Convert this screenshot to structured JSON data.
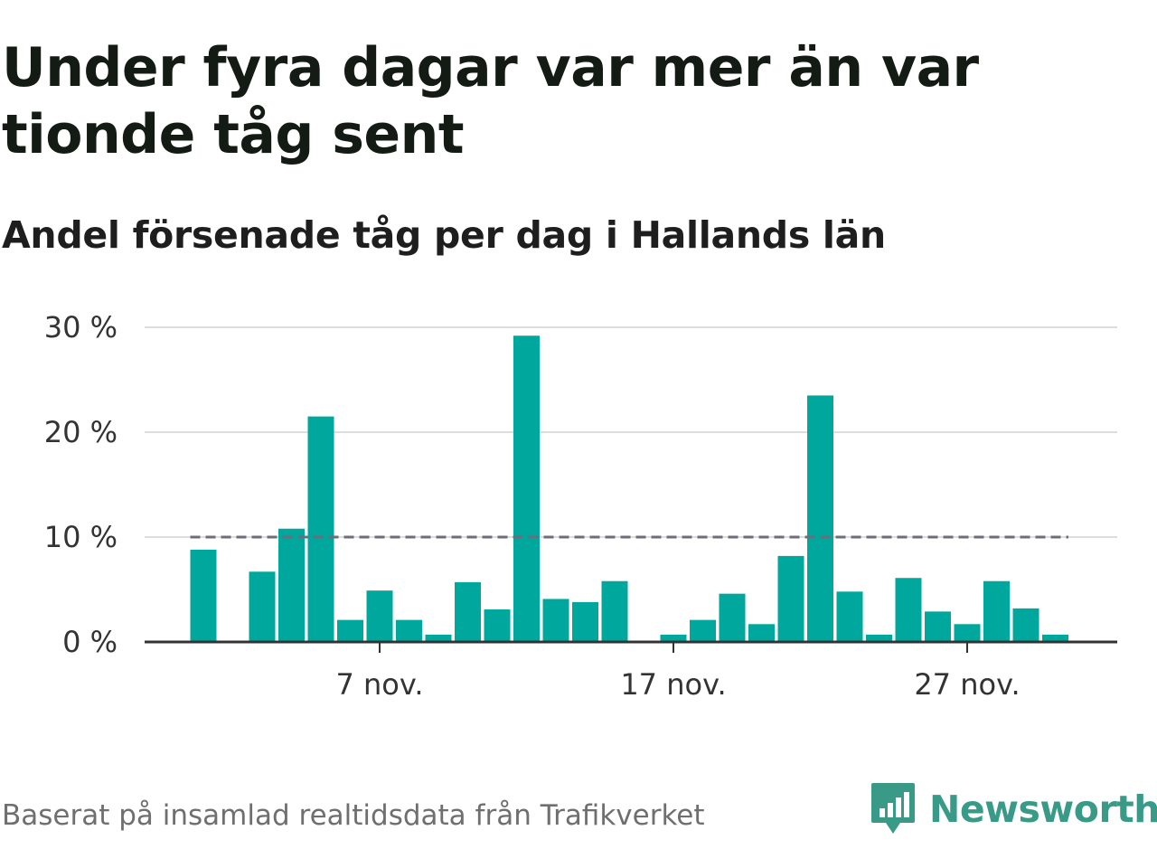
{
  "title": "Under fyra dagar var mer än var tionde tåg sent",
  "subtitle": "Andel försenade tåg per dag i Hallands län",
  "source": "Baserat på insamlad realtidsdata från Trafikverket",
  "brand": {
    "name": "Newsworthy",
    "icon": "bar-chart-speech-bubble-icon",
    "color": "#3a9a88"
  },
  "colors": {
    "bar": "#00a79d",
    "reference_line": "#6e6e78",
    "grid": "#dddddd",
    "axis": "#333333"
  },
  "chart_data": {
    "type": "bar",
    "title": "Under fyra dagar var mer än var tionde tåg sent",
    "subtitle": "Andel försenade tåg per dag i Hallands län",
    "x_start_day": 1,
    "x_end_day": 30,
    "x_month": "nov.",
    "x_ticks": [
      {
        "day": 7,
        "label": "7 nov."
      },
      {
        "day": 17,
        "label": "17 nov."
      },
      {
        "day": 27,
        "label": "27 nov."
      }
    ],
    "y_ticks": [
      {
        "value": 0,
        "label": "0 %"
      },
      {
        "value": 10,
        "label": "10 %"
      },
      {
        "value": 20,
        "label": "20 %"
      },
      {
        "value": 30,
        "label": "30 %"
      }
    ],
    "ylim": [
      0,
      30
    ],
    "grid": true,
    "reference_line": {
      "value": 10,
      "style": "dashed"
    },
    "series": [
      {
        "days": [
          1,
          2,
          3,
          4,
          5,
          6,
          7,
          8,
          9,
          10,
          11,
          12,
          13,
          14,
          15,
          16,
          17,
          18,
          19,
          20,
          21,
          22,
          23,
          24,
          25,
          26,
          27,
          28,
          29,
          30
        ],
        "values": [
          8.8,
          0,
          6.7,
          10.8,
          21.5,
          2.1,
          4.9,
          2.1,
          0.7,
          5.7,
          3.1,
          29.2,
          4.1,
          3.8,
          5.8,
          0,
          0.7,
          2.1,
          4.6,
          1.7,
          8.2,
          23.5,
          4.8,
          0.7,
          6.1,
          2.9,
          1.7,
          5.8,
          3.2,
          0.7
        ]
      }
    ]
  }
}
